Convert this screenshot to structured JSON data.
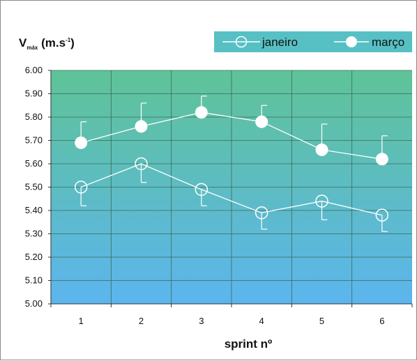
{
  "chart_data": {
    "type": "line",
    "ylabel": {
      "main": "V",
      "sub": "máx",
      "unit_prefix": " (m.s",
      "unit_exp": "-1",
      "unit_suffix": ")"
    },
    "xlabel": "sprint nº",
    "categories": [
      "1",
      "2",
      "3",
      "4",
      "5",
      "6"
    ],
    "ylim": [
      5.0,
      6.0
    ],
    "yticks": [
      "5.00",
      "5.10",
      "5.20",
      "5.30",
      "5.40",
      "5.50",
      "5.60",
      "5.70",
      "5.80",
      "5.90",
      "6.00"
    ],
    "grid": true,
    "legend_position": "top-right",
    "series": [
      {
        "name": "janeiro",
        "marker": "open-circle",
        "values": [
          5.5,
          5.6,
          5.49,
          5.39,
          5.44,
          5.38
        ],
        "err_lower": [
          5.42,
          5.52,
          5.42,
          5.32,
          5.36,
          5.31
        ],
        "err_upper": null
      },
      {
        "name": "março",
        "marker": "filled-circle",
        "values": [
          5.69,
          5.76,
          5.82,
          5.78,
          5.66,
          5.62
        ],
        "err_lower": null,
        "err_upper": [
          5.78,
          5.86,
          5.89,
          5.85,
          5.77,
          5.72
        ]
      }
    ],
    "colors": {
      "bg_top": "#5ec397",
      "bg_bottom": "#5cb5ee",
      "grid": "#3a6a58",
      "line": "#ffffff",
      "legend_bg": "#57c0c4"
    }
  }
}
